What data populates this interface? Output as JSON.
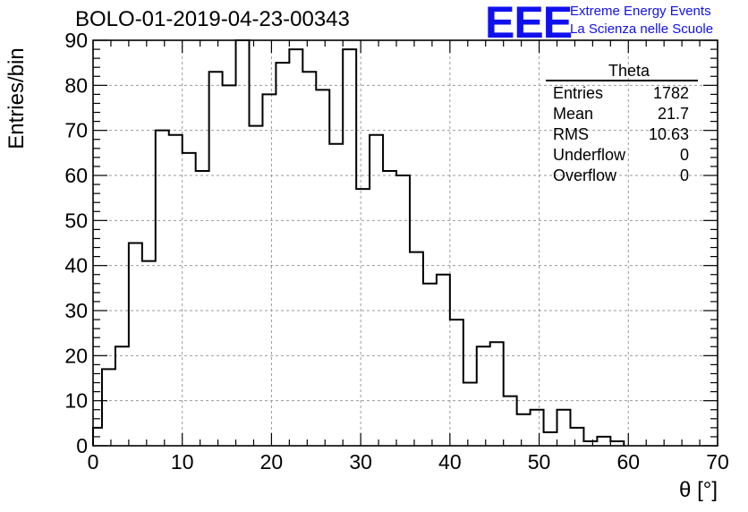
{
  "title": "BOLO-01-2019-04-23-00343",
  "logo": {
    "mark": "EEE",
    "line1": "Extreme Energy Events",
    "line2": "La Scienza nelle Scuole",
    "color": "#1010ee"
  },
  "stats": {
    "name": "Theta",
    "rows": [
      {
        "label": "Entries",
        "value": "1782"
      },
      {
        "label": "Mean",
        "value": "21.7"
      },
      {
        "label": "RMS",
        "value": "10.63"
      },
      {
        "label": "Underflow",
        "value": "0"
      },
      {
        "label": "Overflow",
        "value": "0"
      }
    ]
  },
  "chart_data": {
    "type": "bar",
    "style": "step-histogram",
    "xlabel": "θ [°]",
    "ylabel": "Entries/bin",
    "xlim": [
      0,
      70
    ],
    "ylim": [
      0,
      90
    ],
    "bin_width": 1.5,
    "bin_edges_start": 1,
    "values": [
      17,
      22,
      45,
      41,
      70,
      69,
      65,
      61,
      83,
      80,
      90,
      71,
      78,
      85,
      88,
      83,
      79,
      67,
      88,
      57,
      69,
      61,
      60,
      43,
      36,
      38,
      28,
      14,
      22,
      23,
      11,
      7,
      8,
      3,
      8,
      4,
      1,
      2,
      1
    ],
    "first_bin_value": 4,
    "xticks": [
      "0",
      "10",
      "20",
      "30",
      "40",
      "50",
      "60",
      "70"
    ],
    "yticks": [
      "0",
      "10",
      "20",
      "30",
      "40",
      "50",
      "60",
      "70",
      "80",
      "90"
    ],
    "grid": true,
    "line_color": "#000000",
    "grid_color": "#9a9a9a"
  }
}
